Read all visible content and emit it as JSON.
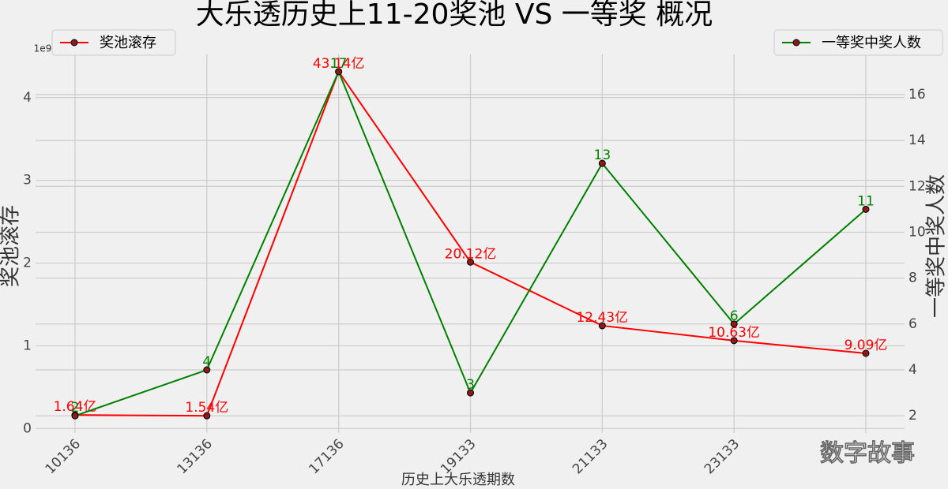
{
  "chart_data": {
    "type": "line",
    "title": "大乐透历史上11-20奖池 VS 一等奖 概况",
    "x_label": "历史上大乐透期数",
    "y_label": "奖池滚存",
    "y2_label": "一等奖中奖人数",
    "y_offset_label": "1e9",
    "watermark": "数字故事",
    "categories": [
      "10136",
      "13136",
      "17136",
      "19133",
      "21133",
      "23133",
      null
    ],
    "series": [
      {
        "name": "奖池滚存",
        "color": "#ff0000",
        "axis": "y",
        "legend": "upper left",
        "values": [
          0.164,
          0.154,
          4.314,
          2.012,
          1.243,
          1.063,
          0.909
        ],
        "value_labels": [
          "1.64亿",
          "1.54亿",
          "43.14亿",
          "20.12亿",
          "12.43亿",
          "10.63亿",
          "9.09亿"
        ]
      },
      {
        "name": "一等奖中奖人数",
        "color": "#008000",
        "axis": "y2",
        "legend": "upper right",
        "values": [
          2,
          4,
          17,
          3,
          13,
          6,
          11
        ]
      }
    ],
    "ylim": [
      -0.054,
      4.522
    ],
    "yticks": [
      0,
      1,
      2,
      3,
      4
    ],
    "y2lim": [
      1.25,
      17.75
    ],
    "y2ticks": [
      2,
      4,
      6,
      8,
      10,
      12,
      14,
      16
    ],
    "grid": true,
    "marker_color": "#8b1a1a"
  }
}
